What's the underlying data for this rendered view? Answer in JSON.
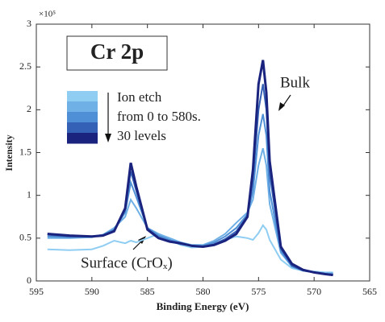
{
  "chart_data": {
    "type": "line",
    "y_multiplier": "×10⁵",
    "xlabel": "Binding Energy (eV)",
    "ylabel": "Intensity",
    "xlim": [
      595,
      565
    ],
    "xticks": [
      595,
      590,
      585,
      580,
      575,
      570,
      565
    ],
    "ylim": [
      0,
      3
    ],
    "yticks": [
      0,
      0.5,
      1,
      1.5,
      2,
      2.5,
      3
    ],
    "annotations": {
      "element": "Cr 2p",
      "legend_text": [
        "Ion etch",
        "from 0 to 580s.",
        "30 levels"
      ],
      "bulk": "Bulk",
      "surface": "Surface (CrOₓ)"
    },
    "x": [
      594,
      592,
      590,
      589,
      588,
      587,
      586.5,
      586,
      585,
      584,
      583,
      582,
      581,
      580,
      579,
      578,
      577,
      576,
      575.5,
      575,
      574.6,
      574.3,
      574,
      573,
      572,
      571,
      570,
      569,
      568.3
    ],
    "series": [
      {
        "color": "#8fcdf3",
        "values": [
          0.37,
          0.36,
          0.37,
          0.41,
          0.47,
          0.44,
          0.47,
          0.45,
          0.5,
          0.55,
          0.48,
          0.42,
          0.39,
          0.4,
          0.43,
          0.48,
          0.52,
          0.5,
          0.48,
          0.56,
          0.65,
          0.6,
          0.48,
          0.25,
          0.15,
          0.12,
          0.11,
          0.1,
          0.1
        ]
      },
      {
        "color": "#6fb0e6",
        "values": [
          0.5,
          0.5,
          0.51,
          0.54,
          0.62,
          0.75,
          0.95,
          0.85,
          0.62,
          0.55,
          0.5,
          0.45,
          0.42,
          0.42,
          0.47,
          0.55,
          0.68,
          0.8,
          0.95,
          1.35,
          1.55,
          1.35,
          0.9,
          0.33,
          0.17,
          0.12,
          0.1,
          0.09,
          0.09
        ]
      },
      {
        "color": "#4f8fd6",
        "values": [
          0.52,
          0.51,
          0.52,
          0.54,
          0.6,
          0.8,
          1.15,
          0.98,
          0.62,
          0.53,
          0.48,
          0.44,
          0.41,
          0.41,
          0.45,
          0.52,
          0.62,
          0.78,
          1.05,
          1.7,
          1.95,
          1.7,
          1.05,
          0.35,
          0.17,
          0.12,
          0.1,
          0.08,
          0.08
        ]
      },
      {
        "color": "#3461b5",
        "values": [
          0.54,
          0.52,
          0.52,
          0.53,
          0.59,
          0.83,
          1.28,
          1.05,
          0.61,
          0.51,
          0.46,
          0.43,
          0.41,
          0.4,
          0.43,
          0.49,
          0.58,
          0.76,
          1.18,
          2.0,
          2.3,
          2.0,
          1.25,
          0.38,
          0.18,
          0.12,
          0.1,
          0.08,
          0.07
        ]
      },
      {
        "color": "#1a237e",
        "values": [
          0.55,
          0.53,
          0.52,
          0.53,
          0.58,
          0.85,
          1.38,
          1.1,
          0.6,
          0.5,
          0.46,
          0.44,
          0.41,
          0.4,
          0.42,
          0.47,
          0.55,
          0.75,
          1.3,
          2.3,
          2.58,
          2.2,
          1.4,
          0.4,
          0.2,
          0.13,
          0.1,
          0.08,
          0.07
        ]
      }
    ]
  }
}
